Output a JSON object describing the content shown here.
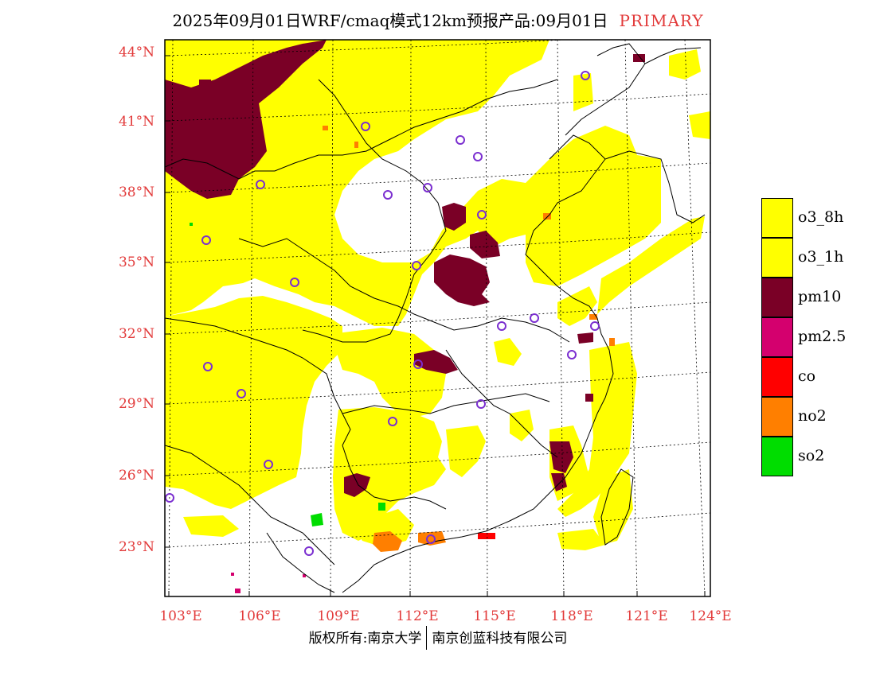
{
  "title": {
    "main": "2025年09月01日WRF/cmaq模式12km预报产品:09月01日",
    "tag": "PRIMARY"
  },
  "latitude_labels": [
    "44°N",
    "41°N",
    "38°N",
    "35°N",
    "32°N",
    "29°N",
    "26°N",
    "23°N"
  ],
  "longitude_labels": [
    "103°E",
    "106°E",
    "109°E",
    "112°E",
    "115°E",
    "118°E",
    "121°E",
    "124°E"
  ],
  "legend": [
    {
      "label": "o3_8h",
      "color": "#ffff00"
    },
    {
      "label": "o3_1h",
      "color": "#ffff00"
    },
    {
      "label": "pm10",
      "color": "#7a0026"
    },
    {
      "label": "pm2.5",
      "color": "#d4006e"
    },
    {
      "label": "co",
      "color": "#ff0000"
    },
    {
      "label": "no2",
      "color": "#ff7f00"
    },
    {
      "label": "so2",
      "color": "#00dd00"
    }
  ],
  "colors": {
    "label_red": "#e23a3a",
    "station_marker": "#7b2fd0"
  },
  "footer": {
    "left": "版权所有:南京大学",
    "right": "南京创蓝科技有限公司"
  }
}
